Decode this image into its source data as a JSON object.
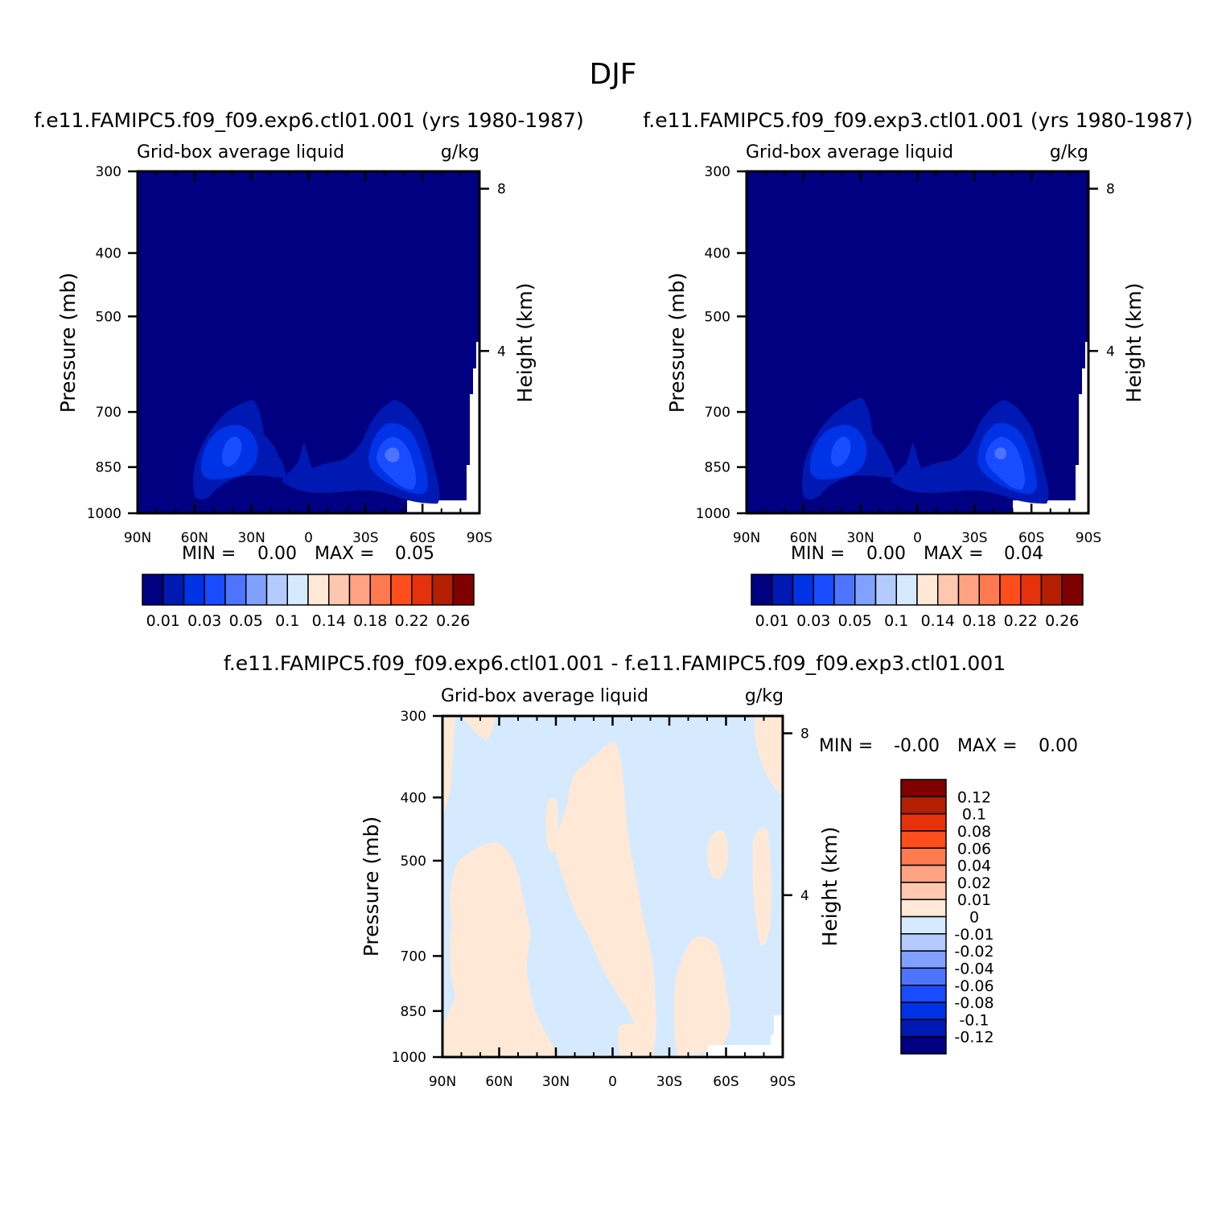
{
  "title": "DJF",
  "colors": {
    "levels12": [
      "#000080",
      "#0019b3",
      "#0032e6",
      "#1a4cff",
      "#4d74ff",
      "#80a1ff",
      "#b3cbff",
      "#d6eaff",
      "#ffe9d6",
      "#ffc8ae",
      "#ffa282",
      "#ff7a4e",
      "#ff4d1c",
      "#e6310d",
      "#b31f00",
      "#800000"
    ],
    "diff": [
      "#000080",
      "#0019b3",
      "#0032e6",
      "#1a4cff",
      "#4d74ff",
      "#80a1ff",
      "#b3cbff",
      "#d6eaff",
      "#ffe9d6",
      "#ffc8ae",
      "#ffa282",
      "#ff7a4e",
      "#ff4d1c",
      "#e6310d",
      "#b31f00",
      "#800000"
    ]
  },
  "chart_data": [
    {
      "type": "heatmap",
      "panel_title": "f.e11.FAMIPC5.f09_f09.exp6.ctl01.001 (yrs 1980-1987)",
      "left_title": "Grid-box average liquid",
      "units": "g/kg",
      "ylabel": "Pressure (mb)",
      "ylabel_right": "Height (km)",
      "x_ticks": [
        "90N",
        "60N",
        "30N",
        "0",
        "30S",
        "60S",
        "90S"
      ],
      "y_ticks": [
        "300",
        "400",
        "500",
        "700",
        "850",
        "1000"
      ],
      "y_right_ticks": [
        "8",
        "4"
      ],
      "min_label": "MIN =",
      "min_value": "0.00",
      "max_label": "MAX =",
      "max_value": "0.05",
      "colorbar_labels": [
        "0.01",
        "0.03",
        "0.05",
        "0.1",
        "0.14",
        "0.18",
        "0.22",
        "0.26"
      ]
    },
    {
      "type": "heatmap",
      "panel_title": "f.e11.FAMIPC5.f09_f09.exp3.ctl01.001 (yrs 1980-1987)",
      "left_title": "Grid-box average liquid",
      "units": "g/kg",
      "ylabel": "Pressure (mb)",
      "ylabel_right": "Height (km)",
      "x_ticks": [
        "90N",
        "60N",
        "30N",
        "0",
        "30S",
        "60S",
        "90S"
      ],
      "y_ticks": [
        "300",
        "400",
        "500",
        "700",
        "850",
        "1000"
      ],
      "y_right_ticks": [
        "8",
        "4"
      ],
      "min_label": "MIN =",
      "min_value": "0.00",
      "max_label": "MAX =",
      "max_value": "0.04",
      "colorbar_labels": [
        "0.01",
        "0.03",
        "0.05",
        "0.1",
        "0.14",
        "0.18",
        "0.22",
        "0.26"
      ]
    },
    {
      "type": "heatmap",
      "panel_title": "f.e11.FAMIPC5.f09_f09.exp6.ctl01.001 - f.e11.FAMIPC5.f09_f09.exp3.ctl01.001",
      "left_title": "Grid-box average liquid",
      "units": "g/kg",
      "ylabel": "Pressure (mb)",
      "ylabel_right": "Height (km)",
      "x_ticks": [
        "90N",
        "60N",
        "30N",
        "0",
        "30S",
        "60S",
        "90S"
      ],
      "y_ticks": [
        "300",
        "400",
        "500",
        "700",
        "850",
        "1000"
      ],
      "y_right_ticks": [
        "8",
        "4"
      ],
      "min_label": "MIN =",
      "min_value": "-0.00",
      "max_label": "MAX =",
      "max_value": "0.00",
      "colorbar_labels": [
        "0.12",
        "0.1",
        "0.08",
        "0.06",
        "0.04",
        "0.02",
        "0.01",
        "0",
        "-0.01",
        "-0.02",
        "-0.04",
        "-0.06",
        "-0.08",
        "-0.1",
        "-0.12"
      ]
    }
  ]
}
